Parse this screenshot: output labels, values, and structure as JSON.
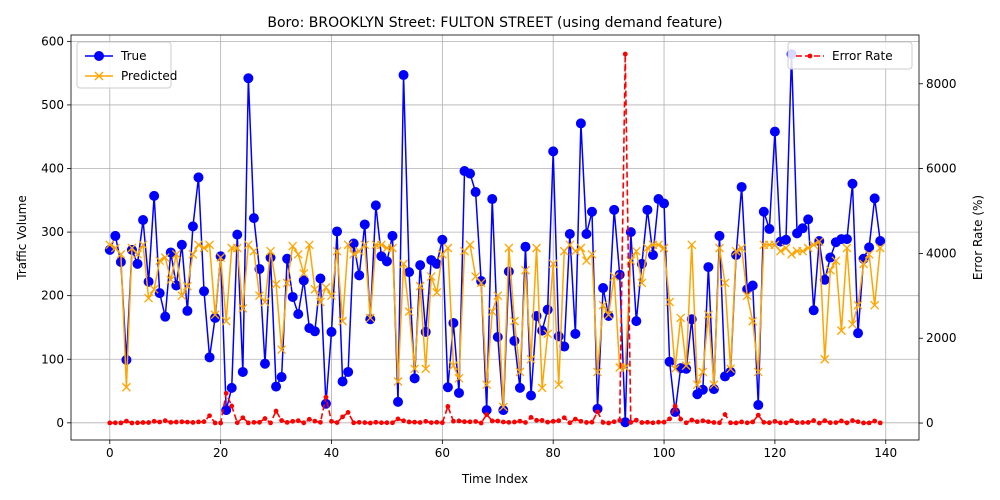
{
  "chart_data": {
    "type": "line",
    "title": "Boro: BROOKLYN Street: FULTON STREET (using demand feature)",
    "xlabel": "Time Index",
    "ylabel": "Traffic Volume",
    "y2label": "Error Rate (%)",
    "xlim": [
      -7,
      146
    ],
    "ylim": [
      -27,
      610
    ],
    "y2lim": [
      -400,
      9150
    ],
    "xticks": [
      0,
      20,
      40,
      60,
      80,
      100,
      120,
      140
    ],
    "yticks": [
      0,
      100,
      200,
      300,
      400,
      500,
      600
    ],
    "y2ticks": [
      0,
      2000,
      4000,
      6000,
      8000
    ],
    "grid": true,
    "legend_left_placement": "upper left",
    "legend_right_placement": "upper right",
    "series": [
      {
        "name": "True",
        "axis": "left",
        "color": "#0000ff",
        "marker": "circle",
        "values": [
          272,
          294,
          253,
          99,
          272,
          250,
          319,
          222,
          357,
          204,
          167,
          268,
          216,
          280,
          176,
          309,
          386,
          207,
          103,
          165,
          262,
          20,
          55,
          296,
          80,
          542,
          322,
          242,
          93,
          260,
          57,
          72,
          258,
          198,
          171,
          224,
          149,
          144,
          227,
          30,
          143,
          301,
          65,
          80,
          282,
          232,
          312,
          163,
          342,
          262,
          254,
          294,
          33,
          547,
          237,
          70,
          248,
          143,
          256,
          250,
          288,
          56,
          157,
          47,
          396,
          392,
          363,
          223,
          20,
          352,
          135,
          20,
          238,
          129,
          55,
          277,
          43,
          168,
          145,
          178,
          427,
          136,
          120,
          297,
          140,
          471,
          297,
          332,
          22,
          212,
          168,
          335,
          233,
          1,
          300,
          160,
          250,
          335,
          264,
          352,
          345,
          96,
          17,
          86,
          85,
          163,
          45,
          52,
          245,
          53,
          294,
          73,
          80,
          264,
          371,
          210,
          216,
          28,
          332,
          305,
          458,
          285,
          288,
          580,
          298,
          306,
          320,
          177,
          286,
          225,
          260,
          284,
          289,
          289,
          376,
          141,
          258,
          276,
          353,
          286
        ]
      },
      {
        "name": "Predicted",
        "axis": "left",
        "color": "#ffa500",
        "marker": "x",
        "values": [
          280,
          275,
          265,
          56,
          275,
          265,
          280,
          196,
          210,
          255,
          260,
          225,
          265,
          200,
          215,
          265,
          280,
          275,
          280,
          170,
          260,
          160,
          275,
          275,
          180,
          280,
          270,
          200,
          190,
          270,
          218,
          115,
          220,
          278,
          265,
          235,
          280,
          210,
          190,
          213,
          200,
          270,
          160,
          280,
          265,
          270,
          280,
          165,
          280,
          280,
          275,
          275,
          65,
          250,
          175,
          85,
          215,
          85,
          230,
          205,
          265,
          275,
          90,
          70,
          270,
          280,
          230,
          220,
          60,
          175,
          200,
          25,
          275,
          160,
          80,
          240,
          100,
          275,
          55,
          140,
          250,
          60,
          270,
          280,
          270,
          275,
          255,
          265,
          80,
          185,
          170,
          230,
          87,
          87,
          255,
          270,
          220,
          275,
          280,
          280,
          275,
          190,
          85,
          165,
          90,
          280,
          60,
          80,
          170,
          60,
          275,
          220,
          85,
          270,
          275,
          200,
          160,
          80,
          280,
          280,
          280,
          270,
          275,
          265,
          270,
          270,
          275,
          280,
          285,
          100,
          240,
          255,
          145,
          275,
          155,
          185,
          250,
          265,
          185,
          275
        ]
      },
      {
        "name": "Error Rate",
        "axis": "right",
        "color": "#ff0000",
        "marker": "dot",
        "linestyle": "dashed",
        "values": [
          3,
          5,
          4,
          45,
          1,
          6,
          12,
          12,
          41,
          25,
          55,
          16,
          23,
          29,
          22,
          14,
          27,
          32,
          172,
          3,
          1,
          700,
          400,
          7,
          125,
          3,
          16,
          17,
          105,
          4,
          283,
          60,
          15,
          40,
          55,
          5,
          88,
          45,
          16,
          610,
          40,
          10,
          146,
          250,
          6,
          16,
          10,
          1,
          18,
          7,
          8,
          6,
          97,
          54,
          26,
          21,
          13,
          40,
          10,
          18,
          8,
          391,
          43,
          49,
          32,
          29,
          37,
          1,
          200,
          50,
          48,
          25,
          16,
          24,
          45,
          13,
          133,
          64,
          62,
          21,
          41,
          56,
          125,
          6,
          93,
          42,
          14,
          20,
          263,
          13,
          1,
          31,
          63,
          8700,
          15,
          69,
          12,
          18,
          6,
          20,
          20,
          98,
          400,
          92,
          6,
          72,
          33,
          54,
          31,
          13,
          6,
          200,
          6,
          2,
          26,
          5,
          26,
          186,
          16,
          8,
          39,
          5,
          5,
          54,
          9,
          12,
          14,
          58,
          0,
          56,
          8,
          10,
          50,
          5,
          59,
          31,
          3,
          4,
          48,
          4
        ]
      }
    ]
  }
}
